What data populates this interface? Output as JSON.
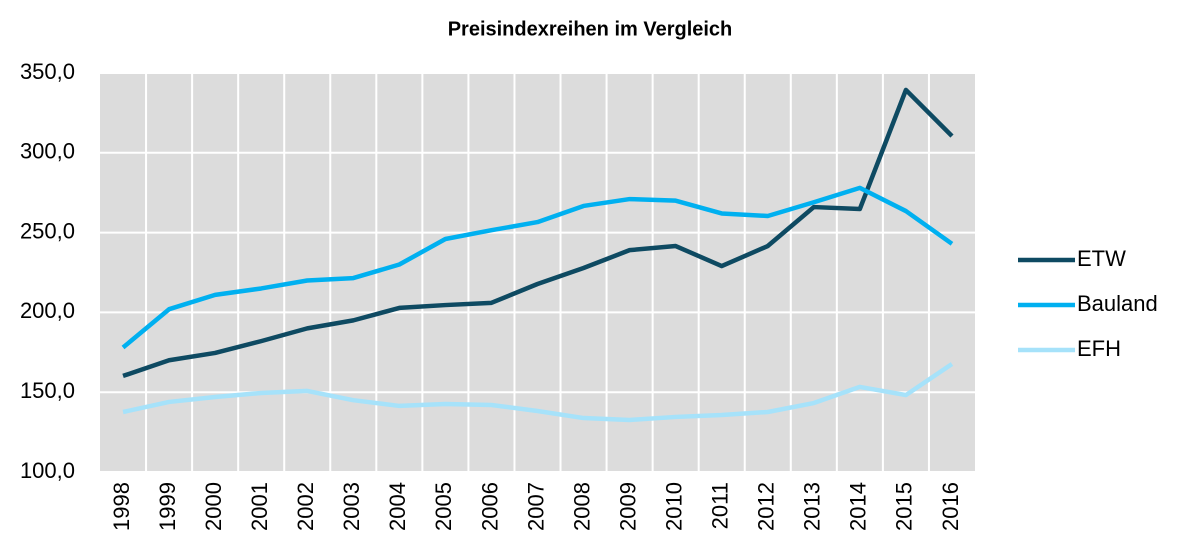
{
  "chart_data": {
    "type": "line",
    "title": "Preisindexreihen im Vergleich",
    "categories": [
      "1998",
      "1999",
      "2000",
      "2001",
      "2002",
      "2003",
      "2004",
      "2005",
      "2006",
      "2007",
      "2008",
      "2009",
      "2010",
      "2011",
      "2012",
      "2013",
      "2014",
      "2015",
      "2016"
    ],
    "series": [
      {
        "name": "ETW",
        "color": "#0e4a62",
        "values": [
          160.2,
          170,
          174.6,
          182,
          190,
          195,
          202.8,
          204.6,
          206,
          217.8,
          227.8,
          239,
          241.6,
          229,
          241.6,
          266,
          264.8,
          339.4,
          310.5
        ]
      },
      {
        "name": "Bauland",
        "color": "#00b0f0",
        "values": [
          178,
          202,
          211,
          215,
          220,
          221.5,
          230,
          246,
          251.5,
          256.6,
          266.7,
          271,
          270,
          262,
          260.4,
          269,
          278,
          263.5,
          243
        ]
      },
      {
        "name": "EFH",
        "color": "#a6e2fa",
        "values": [
          137.6,
          143.9,
          147,
          149.5,
          150.8,
          145,
          141.4,
          142.6,
          142,
          138.2,
          133.8,
          132.6,
          134.5,
          135.7,
          137.6,
          143.2,
          153.3,
          148.2,
          167.7
        ]
      }
    ],
    "ylim": [
      100,
      350
    ],
    "yticks": [
      {
        "value": 100,
        "label": "100,0"
      },
      {
        "value": 150,
        "label": "150,0"
      },
      {
        "value": 200,
        "label": "200,0"
      },
      {
        "value": 250,
        "label": "250,0"
      },
      {
        "value": 300,
        "label": "300,0"
      },
      {
        "value": 350,
        "label": "350,0"
      }
    ],
    "grid": true,
    "legend": "right"
  }
}
